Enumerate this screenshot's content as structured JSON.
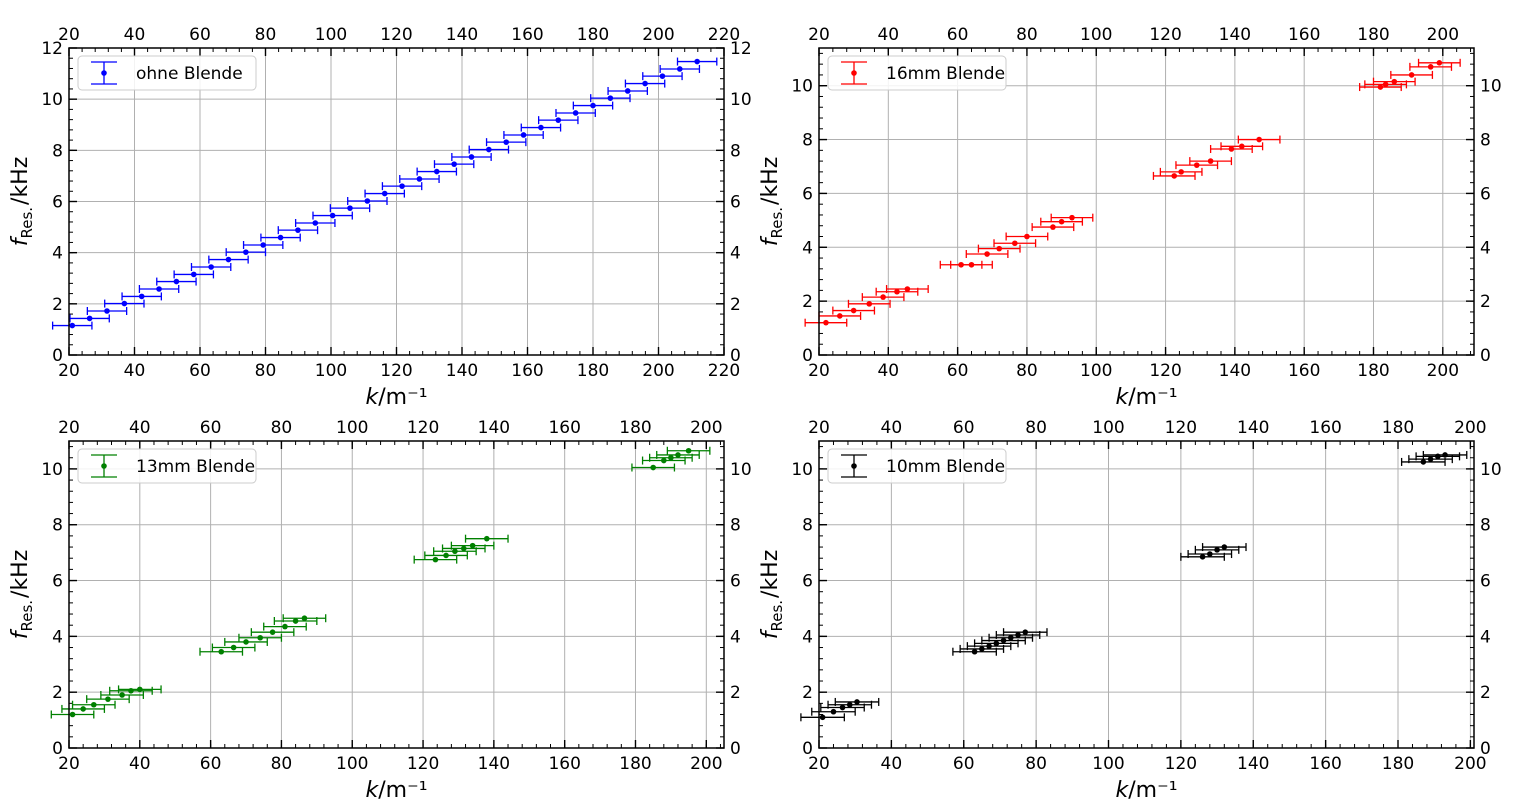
{
  "chart_data": [
    {
      "type": "scatter",
      "xlabel": "k/m⁻¹",
      "ylabel": "f_Res./kHz",
      "xlim": [
        20,
        220
      ],
      "ylim": [
        0,
        12
      ],
      "xticks": [
        20,
        40,
        60,
        80,
        100,
        120,
        140,
        160,
        180,
        200,
        220
      ],
      "yticks": [
        0,
        2,
        4,
        6,
        8,
        10,
        12
      ],
      "grid": true,
      "legend_position": "top-left",
      "series": [
        {
          "name": "ohne Blende",
          "color": "#0000ff",
          "x": [
            21,
            26.3,
            31.6,
            36.9,
            42.2,
            47.5,
            52.8,
            58.1,
            63.4,
            68.7,
            74,
            79.3,
            84.6,
            89.9,
            95.2,
            100.5,
            105.8,
            111.1,
            116.4,
            121.7,
            127,
            132.3,
            137.6,
            142.9,
            148.2,
            153.5,
            158.8,
            164.1,
            169.4,
            174.7,
            180,
            185.3,
            190.6,
            195.9,
            201.2,
            206.5,
            211.8
          ],
          "y": [
            1.15,
            1.43,
            1.72,
            2.01,
            2.29,
            2.58,
            2.87,
            3.15,
            3.44,
            3.73,
            4.02,
            4.3,
            4.59,
            4.88,
            5.16,
            5.45,
            5.74,
            6.02,
            6.31,
            6.6,
            6.88,
            7.17,
            7.46,
            7.74,
            8.03,
            8.32,
            8.6,
            8.89,
            9.18,
            9.46,
            9.75,
            10.04,
            10.32,
            10.61,
            10.9,
            11.18,
            11.47
          ],
          "xerr": 6
        }
      ]
    },
    {
      "type": "scatter",
      "xlabel": "k/m⁻¹",
      "ylabel": "f_Res./kHz",
      "xlim": [
        20,
        209
      ],
      "ylim": [
        0,
        11.4
      ],
      "xticks": [
        20,
        40,
        60,
        80,
        100,
        120,
        140,
        160,
        180,
        200
      ],
      "yticks": [
        0,
        2,
        4,
        6,
        8,
        10
      ],
      "grid": true,
      "legend_position": "top-left",
      "series": [
        {
          "name": "16mm Blende",
          "color": "#ff0000",
          "x": [
            22,
            26,
            30,
            34.5,
            38.5,
            42.5,
            45.5,
            61,
            64,
            68.5,
            72,
            76.5,
            80,
            87.5,
            90,
            93,
            122.5,
            124.5,
            129,
            133,
            139,
            142,
            147,
            182,
            183.5,
            186,
            191,
            196.5,
            199
          ],
          "y": [
            1.2,
            1.45,
            1.65,
            1.9,
            2.15,
            2.35,
            2.45,
            3.35,
            3.35,
            3.75,
            3.95,
            4.15,
            4.4,
            4.75,
            4.95,
            5.1,
            6.65,
            6.8,
            7.05,
            7.2,
            7.65,
            7.75,
            8.0,
            9.95,
            10.05,
            10.15,
            10.4,
            10.7,
            10.85
          ],
          "xerr": 6
        }
      ]
    },
    {
      "type": "scatter",
      "xlabel": "k/m⁻¹",
      "ylabel": "f_Res./kHz",
      "xlim": [
        20,
        205
      ],
      "ylim": [
        0,
        11
      ],
      "xticks": [
        20,
        40,
        60,
        80,
        100,
        120,
        140,
        160,
        180,
        200
      ],
      "yticks": [
        0,
        2,
        4,
        6,
        8,
        10
      ],
      "grid": true,
      "legend_position": "top-left",
      "series": [
        {
          "name": "13mm Blende",
          "color": "#008000",
          "x": [
            21,
            24,
            27,
            31,
            35,
            37.5,
            40,
            63,
            66.5,
            70,
            74,
            77.5,
            81,
            84,
            86.5,
            123.5,
            126.5,
            129,
            131.5,
            134,
            138,
            185,
            188,
            190,
            192,
            195
          ],
          "y": [
            1.2,
            1.4,
            1.55,
            1.75,
            1.9,
            2.05,
            2.1,
            3.45,
            3.6,
            3.8,
            3.95,
            4.15,
            4.35,
            4.55,
            4.65,
            6.75,
            6.9,
            7.05,
            7.15,
            7.25,
            7.5,
            10.05,
            10.3,
            10.4,
            10.5,
            10.65
          ],
          "xerr": 6
        }
      ]
    },
    {
      "type": "scatter",
      "xlabel": "k/m⁻¹",
      "ylabel": "f_Res./kHz",
      "xlim": [
        20,
        201
      ],
      "ylim": [
        0,
        11
      ],
      "xticks": [
        20,
        40,
        60,
        80,
        100,
        120,
        140,
        160,
        180,
        200
      ],
      "yticks": [
        0,
        2,
        4,
        6,
        8,
        10
      ],
      "grid": true,
      "legend_position": "top-left",
      "series": [
        {
          "name": "10mm Blende",
          "color": "#000000",
          "x": [
            21,
            24,
            26.5,
            28.5,
            30.5,
            63,
            65,
            67,
            69,
            71,
            73,
            75,
            77,
            126,
            128,
            130,
            132,
            187,
            189,
            191,
            193
          ],
          "y": [
            1.1,
            1.3,
            1.45,
            1.55,
            1.65,
            3.45,
            3.55,
            3.65,
            3.75,
            3.85,
            3.95,
            4.05,
            4.15,
            6.85,
            6.95,
            7.1,
            7.2,
            10.25,
            10.35,
            10.45,
            10.5
          ],
          "xerr": 6
        }
      ]
    }
  ]
}
